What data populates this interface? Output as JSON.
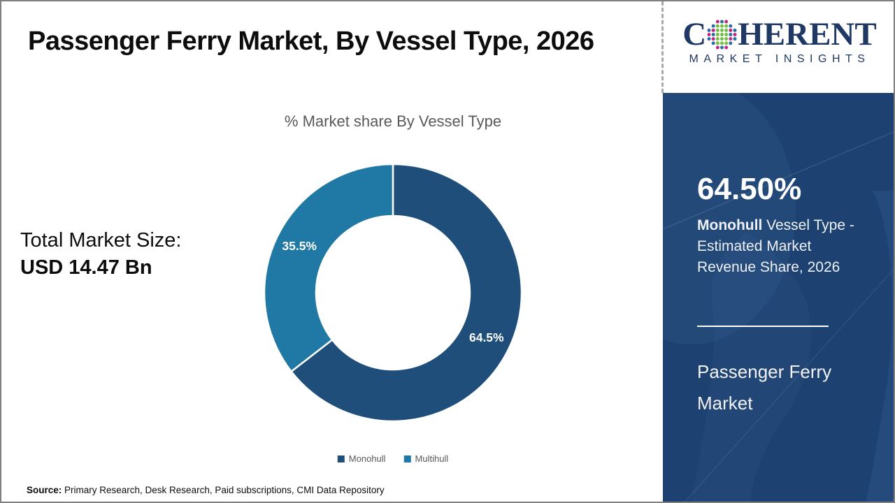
{
  "header": {
    "title": "Passenger Ferry Market, By Vessel Type, 2026"
  },
  "logo": {
    "name_left": "C",
    "name_right": "HERENT",
    "subtitle": "MARKET INSIGHTS",
    "globe_icon": "dot-globe",
    "navy": "#1F3864"
  },
  "chart_data": {
    "type": "pie",
    "donut": true,
    "inner_radius_ratio": 0.6,
    "title": "% Market share By Vessel Type",
    "categories": [
      "Monohull",
      "Multihull"
    ],
    "values": [
      64.5,
      35.5
    ],
    "slice_labels": [
      "64.5%",
      "35.5%"
    ],
    "colors": [
      "#1E4E79",
      "#2078A4"
    ],
    "start_angle_deg": 0,
    "direction": "clockwise",
    "legend_position": "bottom"
  },
  "left_panel": {
    "total_label": "Total Market Size:",
    "total_value": "USD 14.47 Bn"
  },
  "sidebar": {
    "headline_value": "64.50%",
    "desc_bold": "Monohull",
    "desc_rest": " Vessel Type - Estimated Market Revenue Share, 2026",
    "market_name": "Passenger Ferry Market",
    "background": "#1D4271"
  },
  "footer": {
    "source_label": "Source:",
    "source_text": " Primary Research, Desk Research, Paid subscriptions, CMI Data Repository"
  }
}
